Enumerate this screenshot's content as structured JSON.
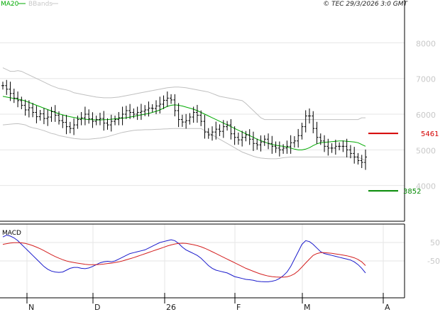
{
  "header": {
    "indicator_ma": "MA20",
    "indicator_bb": "BBands",
    "copyright": "© TEC 29/3/2026 3:0 GMT"
  },
  "macd_label": "MACD",
  "colors": {
    "price": "#000000",
    "ma": "#00aa00",
    "bbands": "#c0c0c0",
    "grid": "#e6e6e6",
    "resistance": "#d40000",
    "support": "#008800",
    "macd_line": "#1a1acc",
    "signal_line": "#d42020",
    "header_ma": "#00aa00",
    "header_bb": "#c8c8c8"
  },
  "chart_data": [
    {
      "type": "ohlc",
      "panel": "price",
      "yticks": [
        4000,
        5000,
        6000,
        7000,
        8000
      ],
      "ylim": [
        3000,
        9200
      ],
      "x_labels": [
        "N",
        "D",
        "26",
        "F",
        "M",
        "A"
      ],
      "levels": [
        {
          "name": "resistance",
          "value": 5461,
          "label": "5461"
        },
        {
          "name": "support",
          "value": 3852,
          "label": "3852"
        }
      ],
      "close": [
        6800,
        6700,
        6580,
        6450,
        6380,
        6250,
        6120,
        6180,
        6050,
        5930,
        6010,
        5880,
        5920,
        6070,
        5970,
        5820,
        5770,
        5650,
        5600,
        5700,
        5850,
        5900,
        6000,
        5870,
        5800,
        5850,
        5880,
        5750,
        5700,
        5800,
        5850,
        5900,
        6000,
        6100,
        6050,
        6000,
        6050,
        6080,
        6120,
        6170,
        6160,
        6230,
        6280,
        6390,
        6450,
        6400,
        6100,
        5850,
        5780,
        5820,
        5920,
        6050,
        5970,
        5800,
        5500,
        5420,
        5500,
        5580,
        5520,
        5650,
        5700,
        5450,
        5350,
        5280,
        5350,
        5420,
        5300,
        5180,
        5140,
        5220,
        5300,
        5180,
        5100,
        5050,
        5000,
        5050,
        5100,
        5200,
        5250,
        5400,
        5650,
        5950,
        5950,
        5600,
        5350,
        5250,
        5100,
        5050,
        5050,
        5100,
        5100,
        5100,
        5000,
        4900,
        4800,
        4700,
        4650,
        4800
      ],
      "bb_upper": [
        7300,
        7250,
        7200,
        7200,
        7220,
        7200,
        7150,
        7100,
        7050,
        7000,
        6950,
        6900,
        6850,
        6800,
        6760,
        6720,
        6700,
        6680,
        6650,
        6600,
        6580,
        6560,
        6540,
        6520,
        6500,
        6480,
        6470,
        6460,
        6460,
        6460,
        6470,
        6480,
        6500,
        6520,
        6540,
        6560,
        6580,
        6600,
        6620,
        6640,
        6660,
        6680,
        6700,
        6720,
        6740,
        6750,
        6760,
        6760,
        6750,
        6740,
        6720,
        6700,
        6680,
        6660,
        6640,
        6620,
        6580,
        6540,
        6500,
        6480,
        6460,
        6440,
        6420,
        6400,
        6380,
        6300,
        6200,
        6100,
        6000,
        5900,
        5850,
        5850,
        5850,
        5850,
        5850,
        5850,
        5850,
        5850,
        5850,
        5850,
        5850,
        5850,
        5850,
        5850,
        5850,
        5850,
        5850,
        5850,
        5850,
        5850,
        5850,
        5850,
        5850,
        5850,
        5850,
        5850,
        5900,
        5900
      ],
      "ma": [
        6500,
        6480,
        6460,
        6440,
        6420,
        6400,
        6370,
        6330,
        6290,
        6250,
        6210,
        6170,
        6130,
        6090,
        6050,
        6010,
        5980,
        5950,
        5930,
        5910,
        5890,
        5875,
        5860,
        5850,
        5845,
        5840,
        5840,
        5845,
        5850,
        5860,
        5870,
        5880,
        5890,
        5900,
        5920,
        5940,
        5960,
        5980,
        6000,
        6020,
        6050,
        6080,
        6120,
        6170,
        6220,
        6250,
        6260,
        6250,
        6230,
        6200,
        6170,
        6140,
        6100,
        6050,
        6000,
        5950,
        5900,
        5850,
        5800,
        5750,
        5700,
        5650,
        5600,
        5550,
        5500,
        5450,
        5400,
        5350,
        5300,
        5260,
        5220,
        5180,
        5150,
        5130,
        5110,
        5100,
        5080,
        5050,
        5020,
        5000,
        5000,
        5020,
        5060,
        5120,
        5170,
        5200,
        5210,
        5220,
        5230,
        5240,
        5250,
        5250,
        5240,
        5230,
        5220,
        5200,
        5150,
        5100
      ],
      "bb_lower": [
        5700,
        5710,
        5720,
        5730,
        5735,
        5720,
        5700,
        5650,
        5620,
        5600,
        5570,
        5540,
        5500,
        5460,
        5440,
        5400,
        5380,
        5360,
        5340,
        5320,
        5310,
        5300,
        5300,
        5300,
        5310,
        5320,
        5330,
        5350,
        5370,
        5400,
        5430,
        5460,
        5490,
        5510,
        5530,
        5545,
        5555,
        5560,
        5565,
        5565,
        5570,
        5575,
        5580,
        5585,
        5590,
        5595,
        5600,
        5600,
        5600,
        5600,
        5600,
        5600,
        5600,
        5600,
        5540,
        5480,
        5420,
        5360,
        5300,
        5240,
        5180,
        5120,
        5060,
        5000,
        4940,
        4900,
        4860,
        4820,
        4790,
        4770,
        4760,
        4755,
        4750,
        4750,
        4760,
        4780,
        4790,
        4800,
        4800,
        4800,
        4800,
        4800,
        4800,
        4800,
        4800,
        4800,
        4800,
        4800,
        4800,
        4800,
        4800,
        4800,
        4800,
        4800,
        4800,
        4800,
        4750,
        4700
      ]
    },
    {
      "type": "line",
      "panel": "macd",
      "yticks": [
        50,
        -50
      ],
      "tick_labels": [
        "50",
        "-50"
      ],
      "ylim": [
        -250,
        150
      ],
      "series": [
        {
          "name": "MACD",
          "values": [
            80,
            90,
            85,
            75,
            60,
            40,
            20,
            0,
            -20,
            -40,
            -60,
            -80,
            -95,
            -105,
            -110,
            -112,
            -110,
            -100,
            -90,
            -85,
            -85,
            -90,
            -92,
            -88,
            -80,
            -70,
            -60,
            -55,
            -52,
            -55,
            -50,
            -40,
            -30,
            -20,
            -10,
            -5,
            0,
            5,
            10,
            20,
            30,
            40,
            50,
            55,
            60,
            65,
            60,
            45,
            25,
            10,
            0,
            -10,
            -20,
            -35,
            -55,
            -75,
            -90,
            -100,
            -105,
            -110,
            -115,
            -125,
            -135,
            -140,
            -145,
            -150,
            -152,
            -155,
            -160,
            -162,
            -163,
            -163,
            -160,
            -155,
            -145,
            -130,
            -110,
            -80,
            -40,
            0,
            40,
            60,
            55,
            40,
            20,
            0,
            -10,
            -15,
            -20,
            -25,
            -30,
            -35,
            -40,
            -45,
            -55,
            -70,
            -90,
            -115
          ]
        },
        {
          "name": "Signal",
          "values": [
            40,
            44,
            47,
            49,
            49,
            48,
            45,
            40,
            33,
            25,
            16,
            6,
            -5,
            -16,
            -26,
            -35,
            -43,
            -50,
            -55,
            -59,
            -62,
            -65,
            -68,
            -70,
            -70,
            -70,
            -69,
            -67,
            -64,
            -62,
            -59,
            -55,
            -50,
            -44,
            -38,
            -32,
            -25,
            -18,
            -11,
            -4,
            3,
            10,
            17,
            24,
            31,
            37,
            42,
            45,
            46,
            45,
            42,
            38,
            33,
            27,
            19,
            10,
            0,
            -10,
            -20,
            -30,
            -40,
            -50,
            -60,
            -70,
            -80,
            -90,
            -98,
            -106,
            -114,
            -121,
            -127,
            -132,
            -135,
            -137,
            -138,
            -138,
            -136,
            -130,
            -120,
            -104,
            -83,
            -61,
            -40,
            -20,
            -10,
            -5,
            -5,
            -7,
            -9,
            -12,
            -15,
            -18,
            -22,
            -27,
            -33,
            -42,
            -55,
            -75
          ]
        }
      ]
    }
  ]
}
